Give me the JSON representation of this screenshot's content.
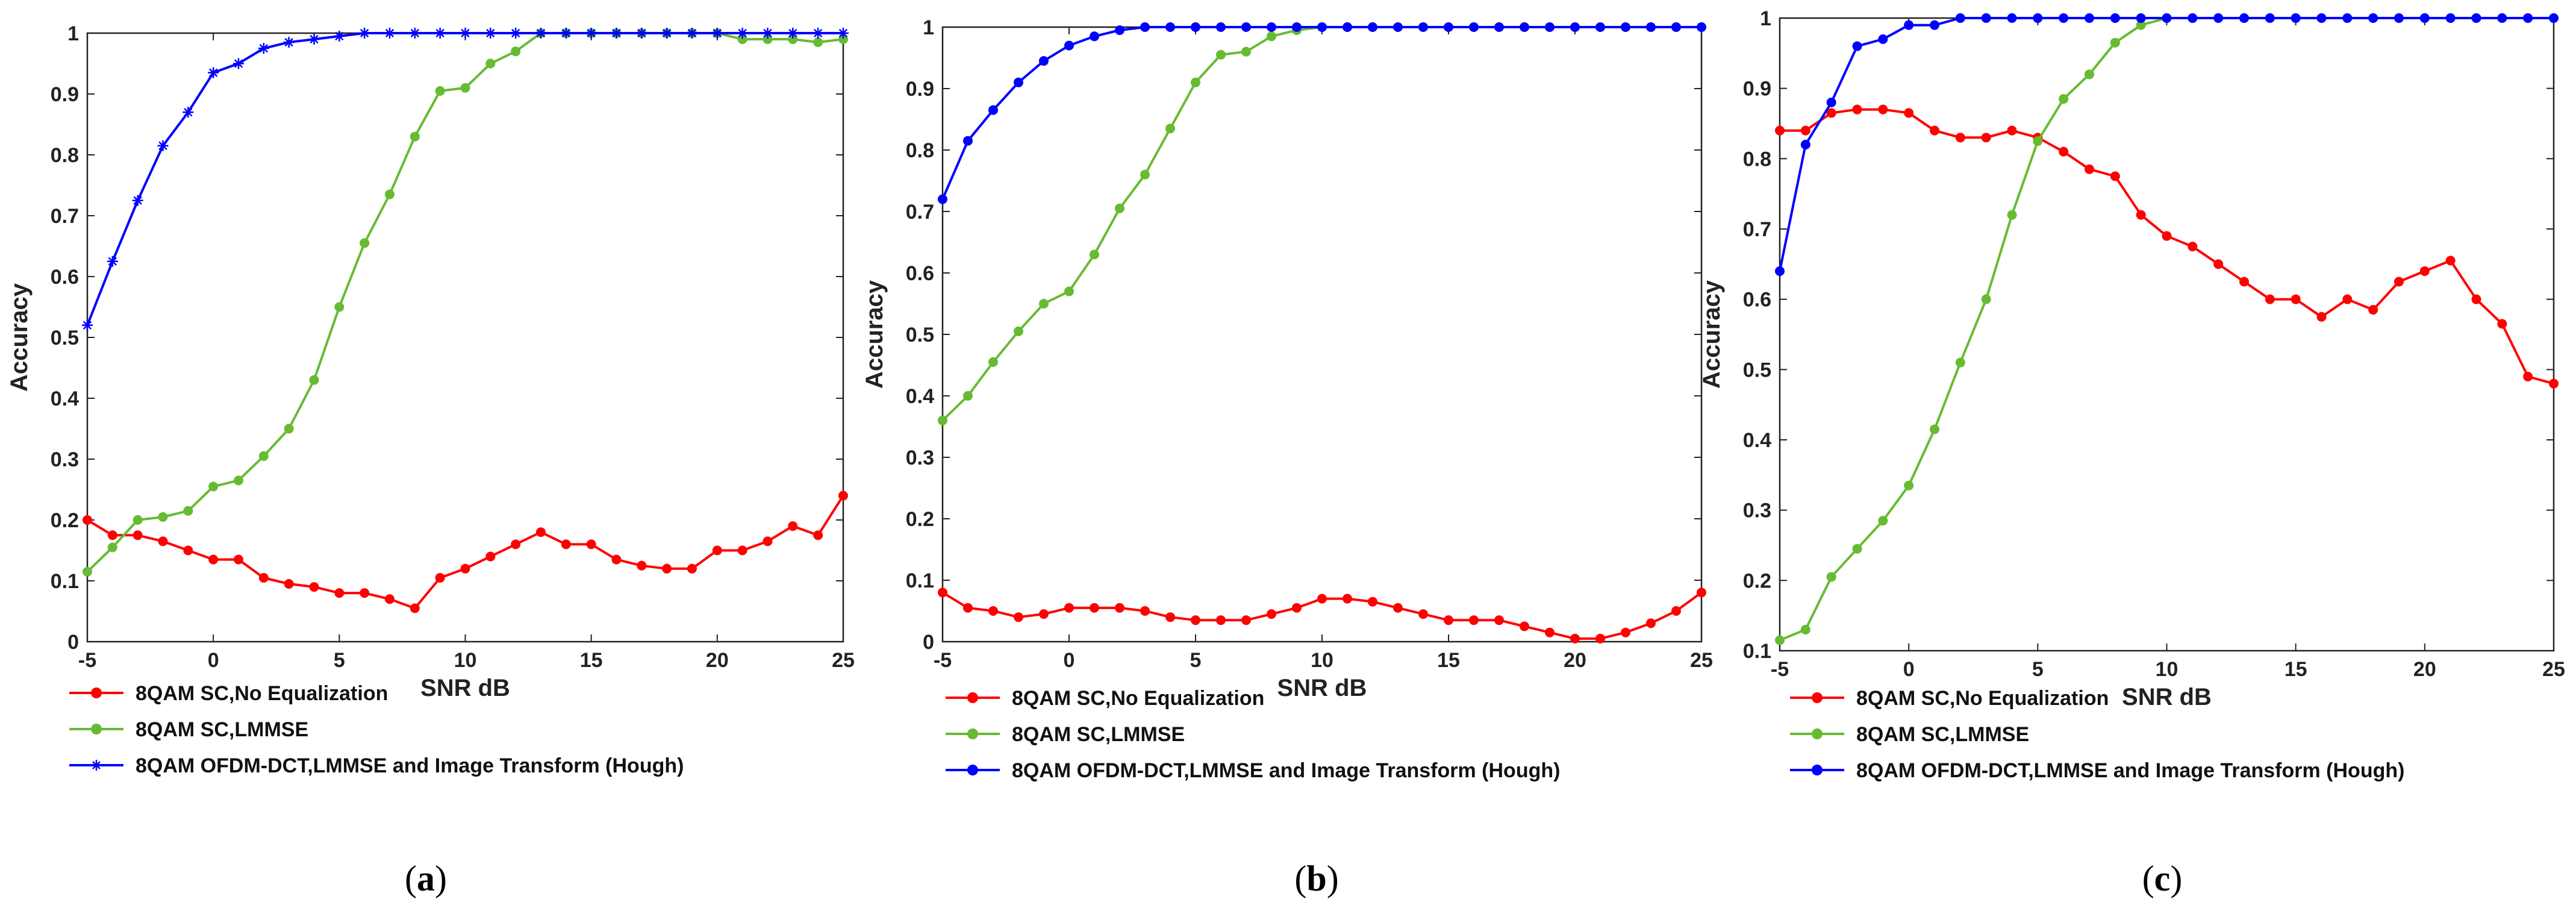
{
  "colors": {
    "red": "#ff0000",
    "green": "#66bb33",
    "blue": "#0000ff"
  },
  "legend": [
    {
      "label": "8QAM SC,No Equalization",
      "color": "#ff0000"
    },
    {
      "label": "8QAM SC,LMMSE",
      "color": "#66bb33"
    },
    {
      "label": "8QAM OFDM-DCT,LMMSE and Image Transform (Hough)",
      "color": "#0000ff"
    }
  ],
  "panel_labels": [
    {
      "open": "(",
      "letter": "a",
      "close": ")"
    },
    {
      "open": "(",
      "letter": "b",
      "close": ")"
    },
    {
      "open": "(",
      "letter": "c",
      "close": ")"
    }
  ],
  "chart_data": [
    {
      "type": "line",
      "panel": "a",
      "xlabel": "SNR dB",
      "ylabel": "Accuracy",
      "xlim": [
        -5,
        25
      ],
      "ylim": [
        0,
        1
      ],
      "xticks": [
        -5,
        0,
        5,
        10,
        15,
        20,
        25
      ],
      "yticks": [
        0,
        0.1,
        0.2,
        0.3,
        0.4,
        0.5,
        0.6,
        0.7,
        0.8,
        0.9,
        1
      ],
      "x": [
        -5,
        -4,
        -3,
        -2,
        -1,
        0,
        1,
        2,
        3,
        4,
        5,
        6,
        7,
        8,
        9,
        10,
        11,
        12,
        13,
        14,
        15,
        16,
        17,
        18,
        19,
        20,
        21,
        22,
        23,
        24,
        25
      ],
      "series": [
        {
          "name": "8QAM SC,No Equalization",
          "color": "#ff0000",
          "marker": "dot",
          "values": [
            0.2,
            0.175,
            0.175,
            0.165,
            0.15,
            0.135,
            0.135,
            0.105,
            0.095,
            0.09,
            0.08,
            0.08,
            0.07,
            0.055,
            0.105,
            0.12,
            0.14,
            0.16,
            0.18,
            0.16,
            0.16,
            0.135,
            0.125,
            0.12,
            0.12,
            0.15,
            0.15,
            0.165,
            0.19,
            0.175,
            0.24
          ]
        },
        {
          "name": "8QAM SC,LMMSE",
          "color": "#66bb33",
          "marker": "dot",
          "values": [
            0.115,
            0.155,
            0.2,
            0.205,
            0.215,
            0.255,
            0.265,
            0.305,
            0.35,
            0.43,
            0.55,
            0.655,
            0.735,
            0.83,
            0.905,
            0.91,
            0.95,
            0.97,
            1.0,
            1.0,
            1.0,
            1.0,
            1.0,
            1.0,
            1.0,
            1.0,
            0.99,
            0.99,
            0.99,
            0.985,
            0.99
          ]
        },
        {
          "name": "8QAM OFDM-DCT,LMMSE and Image Transform (Hough)",
          "color": "#0000ff",
          "marker": "star",
          "values": [
            0.52,
            0.625,
            0.725,
            0.815,
            0.87,
            0.935,
            0.95,
            0.975,
            0.985,
            0.99,
            0.995,
            1.0,
            1.0,
            1.0,
            1.0,
            1.0,
            1.0,
            1.0,
            1.0,
            1.0,
            1.0,
            1.0,
            1.0,
            1.0,
            1.0,
            1.0,
            1.0,
            1.0,
            1.0,
            1.0,
            1.0
          ]
        }
      ]
    },
    {
      "type": "line",
      "panel": "b",
      "xlabel": "SNR dB",
      "ylabel": "Accuracy",
      "xlim": [
        -5,
        25
      ],
      "ylim": [
        0,
        1
      ],
      "xticks": [
        -5,
        0,
        5,
        10,
        15,
        20,
        25
      ],
      "yticks": [
        0,
        0.1,
        0.2,
        0.3,
        0.4,
        0.5,
        0.6,
        0.7,
        0.8,
        0.9,
        1
      ],
      "x": [
        -5,
        -4,
        -3,
        -2,
        -1,
        0,
        1,
        2,
        3,
        4,
        5,
        6,
        7,
        8,
        9,
        10,
        11,
        12,
        13,
        14,
        15,
        16,
        17,
        18,
        19,
        20,
        21,
        22,
        23,
        24,
        25
      ],
      "series": [
        {
          "name": "8QAM SC,No Equalization",
          "color": "#ff0000",
          "marker": "dot",
          "values": [
            0.08,
            0.055,
            0.05,
            0.04,
            0.045,
            0.055,
            0.055,
            0.055,
            0.05,
            0.04,
            0.035,
            0.035,
            0.035,
            0.045,
            0.055,
            0.07,
            0.07,
            0.065,
            0.055,
            0.045,
            0.035,
            0.035,
            0.035,
            0.025,
            0.015,
            0.005,
            0.005,
            0.015,
            0.03,
            0.05,
            0.08
          ]
        },
        {
          "name": "8QAM SC,LMMSE",
          "color": "#66bb33",
          "marker": "dot",
          "values": [
            0.36,
            0.4,
            0.455,
            0.505,
            0.55,
            0.57,
            0.63,
            0.705,
            0.76,
            0.835,
            0.91,
            0.955,
            0.96,
            0.985,
            0.995,
            1.0,
            1.0,
            1.0,
            1.0,
            1.0,
            1.0,
            1.0,
            1.0,
            1.0,
            1.0,
            1.0,
            1.0,
            1.0,
            1.0,
            1.0,
            1.0
          ]
        },
        {
          "name": "8QAM OFDM-DCT,LMMSE and Image Transform (Hough)",
          "color": "#0000ff",
          "marker": "dot",
          "values": [
            0.72,
            0.815,
            0.865,
            0.91,
            0.945,
            0.97,
            0.985,
            0.995,
            1.0,
            1.0,
            1.0,
            1.0,
            1.0,
            1.0,
            1.0,
            1.0,
            1.0,
            1.0,
            1.0,
            1.0,
            1.0,
            1.0,
            1.0,
            1.0,
            1.0,
            1.0,
            1.0,
            1.0,
            1.0,
            1.0,
            1.0
          ]
        }
      ]
    },
    {
      "type": "line",
      "panel": "c",
      "xlabel": "SNR dB",
      "ylabel": "Accuracy",
      "xlim": [
        -5,
        25
      ],
      "ylim": [
        0.1,
        1
      ],
      "xticks": [
        -5,
        0,
        5,
        10,
        15,
        20,
        25
      ],
      "yticks": [
        0.1,
        0.2,
        0.3,
        0.4,
        0.5,
        0.6,
        0.7,
        0.8,
        0.9,
        1
      ],
      "x": [
        -5,
        -4,
        -3,
        -2,
        -1,
        0,
        1,
        2,
        3,
        4,
        5,
        6,
        7,
        8,
        9,
        10,
        11,
        12,
        13,
        14,
        15,
        16,
        17,
        18,
        19,
        20,
        21,
        22,
        23,
        24,
        25
      ],
      "series": [
        {
          "name": "8QAM SC,No Equalization",
          "color": "#ff0000",
          "marker": "dot",
          "values": [
            0.84,
            0.84,
            0.865,
            0.87,
            0.87,
            0.865,
            0.84,
            0.83,
            0.83,
            0.84,
            0.83,
            0.81,
            0.785,
            0.775,
            0.72,
            0.69,
            0.675,
            0.65,
            0.625,
            0.6,
            0.6,
            0.575,
            0.6,
            0.585,
            0.625,
            0.64,
            0.655,
            0.6,
            0.565,
            0.49,
            0.48
          ]
        },
        {
          "name": "8QAM SC,LMMSE",
          "color": "#66bb33",
          "marker": "dot",
          "values": [
            0.115,
            0.13,
            0.205,
            0.245,
            0.285,
            0.335,
            0.415,
            0.51,
            0.6,
            0.72,
            0.825,
            0.885,
            0.92,
            0.965,
            0.99,
            1.0,
            1.0,
            1.0,
            1.0,
            1.0,
            1.0,
            1.0,
            1.0,
            1.0,
            1.0,
            1.0,
            1.0,
            1.0,
            1.0,
            1.0,
            1.0
          ]
        },
        {
          "name": "8QAM OFDM-DCT,LMMSE and Image Transform (Hough)",
          "color": "#0000ff",
          "marker": "dot",
          "values": [
            0.64,
            0.82,
            0.88,
            0.96,
            0.97,
            0.99,
            0.99,
            1.0,
            1.0,
            1.0,
            1.0,
            1.0,
            1.0,
            1.0,
            1.0,
            1.0,
            1.0,
            1.0,
            1.0,
            1.0,
            1.0,
            1.0,
            1.0,
            1.0,
            1.0,
            1.0,
            1.0,
            1.0,
            1.0,
            1.0,
            1.0
          ]
        }
      ]
    }
  ]
}
